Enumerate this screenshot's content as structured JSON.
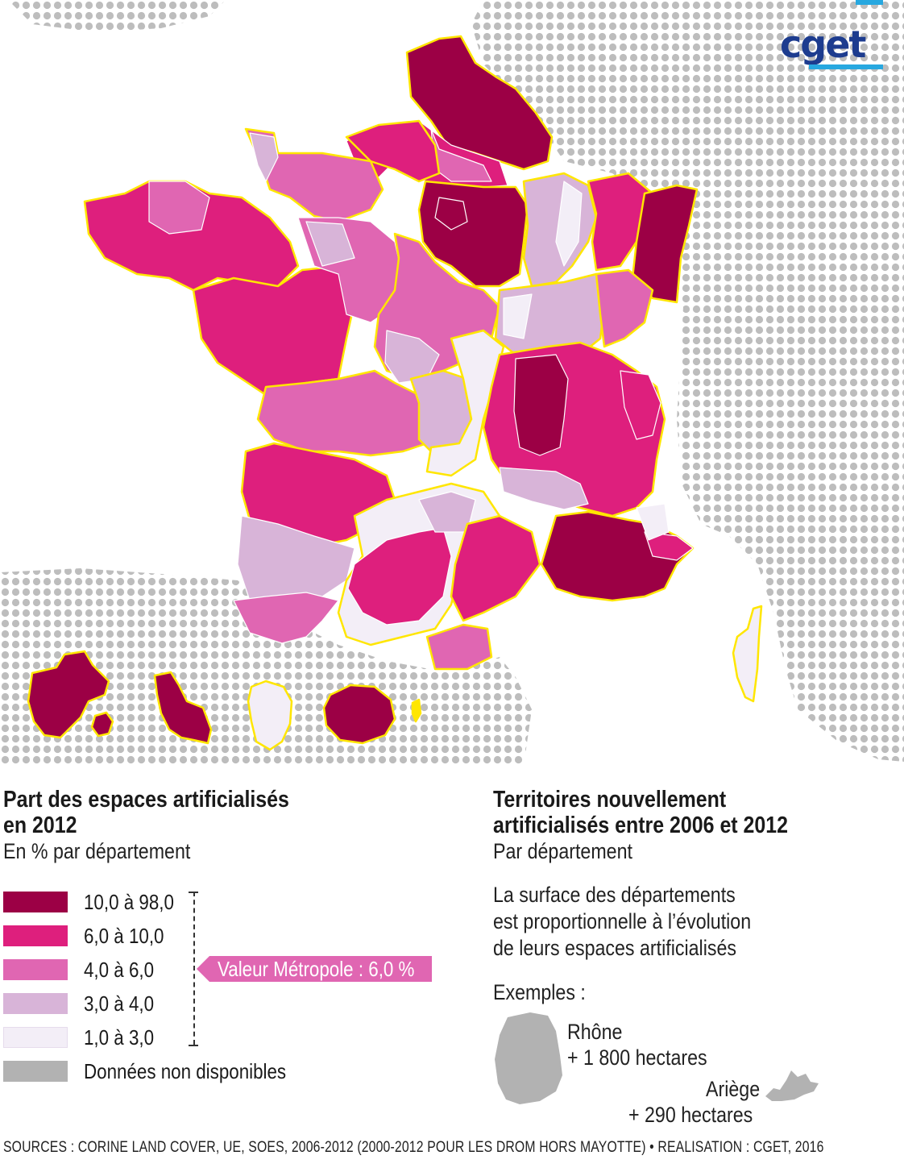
{
  "logo": {
    "text": "cget",
    "colors": {
      "text": "#1d3c8f",
      "accent": "#27a8e0"
    }
  },
  "legend_left": {
    "title_line1": "Part des espaces artificialisés",
    "title_line2": "en 2012",
    "subtitle": "En % par département",
    "classes": [
      {
        "label": "10,0 à 98,0",
        "color": "#9c0045"
      },
      {
        "label": "6,0 à 10,0",
        "color": "#de1f7d"
      },
      {
        "label": "4,0 à 6,0",
        "color": "#e066b2"
      },
      {
        "label": "3,0 à 4,0",
        "color": "#d8b4d8"
      },
      {
        "label": "1,0 à 3,0",
        "color": "#f3eef7"
      },
      {
        "label": "Données non disponibles",
        "color": "#b2b2b2"
      }
    ],
    "metro_value": "Valeur Métropole : 6,0 %"
  },
  "legend_right": {
    "title_line1": "Territoires nouvellement",
    "title_line2": "artificialisés entre 2006 et 2012",
    "subtitle": "Par département",
    "description": [
      "La surface des départements",
      "est proportionnelle à l’évolution",
      "de leurs espaces artificialisés"
    ],
    "examples_label": "Exemples :",
    "examples": [
      {
        "name": "Rhône",
        "value": "+ 1 800 hectares"
      },
      {
        "name": "Ariège",
        "value": "+ 290 hectares"
      }
    ]
  },
  "map": {
    "region_border_color": "#ffe600",
    "neighbor_dot_color": "#bdbdbd"
  },
  "sources": "SOURCES : CORINE LAND COVER, UE, SOES, 2006-2012 (2000-2012 POUR LES DROM HORS MAYOTTE) • REALISATION : CGET, 2016"
}
